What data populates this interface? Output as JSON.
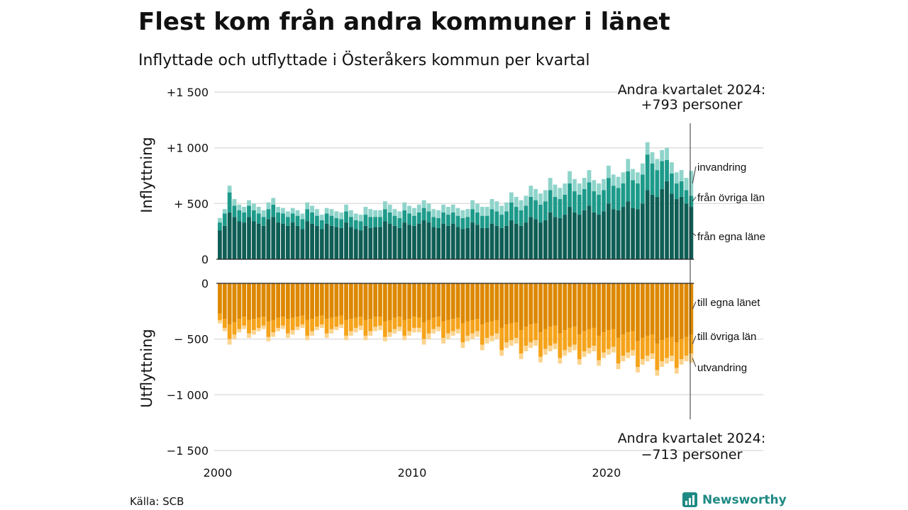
{
  "title": "Flest kom från andra kommuner i länet",
  "subtitle": "Inflyttade och utflyttade i Österåkers kommun per kvartal",
  "source": "Källa: SCB",
  "brand": "Newsworthy",
  "colors": {
    "in_own": "#0f5e55",
    "in_other": "#1d9a8a",
    "in_immig": "#8fd4cb",
    "out_own": "#dd8800",
    "out_other": "#f5a31a",
    "out_emig": "#fbd48f",
    "brand": "#1f8a84"
  },
  "chart_data": {
    "type": "bar",
    "stacked": true,
    "x_start": "2000 Q1",
    "x_end": "2024 Q2",
    "x_ticks": [
      "2000",
      "2010",
      "2020"
    ],
    "y_ticks": [
      "+1 500",
      "+1 000",
      "+ 500",
      "0",
      "0",
      "− 500",
      "−1 000",
      "−1 500"
    ],
    "in_axis_label": "Inflyttning",
    "out_axis_label": "Utflyttning",
    "ylim_in": [
      0,
      1500
    ],
    "ylim_out": [
      -1500,
      0
    ],
    "annotation_top": [
      "Andra kvartalet 2024:",
      "+793 personer"
    ],
    "annotation_bottom": [
      "Andra kvartalet 2024:",
      "−713 personer"
    ],
    "series_in": [
      {
        "name": "från egna länet",
        "label": "från egna läne",
        "values": [
          260,
          300,
          420,
          380,
          340,
          330,
          380,
          340,
          320,
          300,
          360,
          380,
          330,
          320,
          300,
          330,
          300,
          270,
          340,
          320,
          300,
          270,
          320,
          300,
          290,
          280,
          330,
          290,
          270,
          260,
          300,
          280,
          290,
          290,
          340,
          320,
          300,
          280,
          330,
          310,
          300,
          320,
          350,
          330,
          290,
          280,
          320,
          300,
          320,
          290,
          270,
          280,
          330,
          310,
          280,
          280,
          320,
          300,
          280,
          300,
          350,
          320,
          300,
          330,
          380,
          360,
          330,
          350,
          420,
          380,
          370,
          400,
          470,
          420,
          400,
          440,
          480,
          420,
          400,
          430,
          500,
          450,
          440,
          470,
          520,
          460,
          450,
          500,
          620,
          580,
          560,
          630,
          700,
          590,
          540,
          560,
          500,
          470
        ]
      },
      {
        "name": "från övriga län",
        "label": "från övriga län",
        "values": [
          70,
          110,
          180,
          100,
          100,
          90,
          100,
          100,
          90,
          80,
          90,
          110,
          90,
          90,
          80,
          80,
          90,
          90,
          110,
          100,
          90,
          80,
          90,
          90,
          80,
          80,
          100,
          90,
          80,
          80,
          100,
          100,
          90,
          90,
          110,
          100,
          90,
          90,
          110,
          100,
          90,
          100,
          110,
          100,
          90,
          90,
          100,
          100,
          100,
          100,
          100,
          100,
          120,
          110,
          110,
          110,
          130,
          130,
          120,
          130,
          160,
          150,
          140,
          150,
          180,
          170,
          160,
          170,
          200,
          180,
          170,
          180,
          210,
          190,
          180,
          190,
          210,
          190,
          180,
          190,
          230,
          210,
          200,
          210,
          270,
          250,
          230,
          260,
          320,
          280,
          240,
          250,
          190,
          180,
          140,
          140,
          120,
          100
        ]
      },
      {
        "name": "invandring",
        "label": "invandring",
        "values": [
          40,
          40,
          60,
          60,
          50,
          50,
          50,
          60,
          60,
          60,
          60,
          60,
          50,
          50,
          50,
          50,
          50,
          50,
          60,
          60,
          60,
          50,
          50,
          60,
          60,
          60,
          60,
          60,
          60,
          60,
          70,
          70,
          60,
          60,
          70,
          70,
          60,
          60,
          70,
          70,
          70,
          70,
          70,
          70,
          70,
          70,
          70,
          70,
          70,
          70,
          70,
          70,
          80,
          80,
          80,
          80,
          90,
          90,
          80,
          80,
          90,
          90,
          90,
          90,
          100,
          100,
          100,
          100,
          110,
          110,
          100,
          100,
          110,
          110,
          100,
          100,
          110,
          100,
          100,
          100,
          110,
          100,
          100,
          100,
          110,
          100,
          100,
          100,
          110,
          100,
          100,
          100,
          110,
          100,
          100,
          100,
          110,
          223
        ]
      }
    ],
    "series_out": [
      {
        "name": "till egna länet",
        "label": "till egna länet",
        "values": [
          -270,
          -320,
          -370,
          -350,
          -320,
          -300,
          -330,
          -320,
          -310,
          -300,
          -340,
          -330,
          -310,
          -300,
          -320,
          -310,
          -300,
          -290,
          -330,
          -320,
          -300,
          -290,
          -320,
          -310,
          -300,
          -290,
          -330,
          -320,
          -310,
          -300,
          -330,
          -320,
          -300,
          -300,
          -340,
          -330,
          -310,
          -300,
          -330,
          -320,
          -300,
          -310,
          -350,
          -330,
          -310,
          -300,
          -340,
          -330,
          -320,
          -310,
          -360,
          -340,
          -330,
          -320,
          -370,
          -350,
          -340,
          -330,
          -400,
          -370,
          -360,
          -350,
          -420,
          -390,
          -370,
          -360,
          -440,
          -410,
          -390,
          -380,
          -450,
          -420,
          -400,
          -390,
          -460,
          -430,
          -410,
          -400,
          -470,
          -440,
          -420,
          -410,
          -490,
          -460,
          -440,
          -430,
          -520,
          -490,
          -470,
          -460,
          -540,
          -510,
          -490,
          -480,
          -530,
          -500,
          -480,
          -460
        ]
      },
      {
        "name": "till övriga län",
        "label": "till övriga län",
        "values": [
          -60,
          -80,
          -130,
          -110,
          -90,
          -80,
          -120,
          -100,
          -90,
          -80,
          -140,
          -110,
          -90,
          -80,
          -130,
          -110,
          -90,
          -80,
          -140,
          -110,
          -90,
          -80,
          -130,
          -100,
          -90,
          -80,
          -140,
          -110,
          -90,
          -80,
          -140,
          -110,
          -90,
          -80,
          -140,
          -110,
          -100,
          -90,
          -140,
          -110,
          -100,
          -90,
          -150,
          -120,
          -100,
          -90,
          -150,
          -120,
          -110,
          -100,
          -170,
          -130,
          -120,
          -110,
          -180,
          -140,
          -130,
          -120,
          -200,
          -160,
          -150,
          -140,
          -210,
          -170,
          -160,
          -150,
          -220,
          -180,
          -170,
          -160,
          -220,
          -180,
          -170,
          -160,
          -220,
          -180,
          -170,
          -160,
          -220,
          -180,
          -170,
          -160,
          -230,
          -190,
          -180,
          -170,
          -230,
          -190,
          -180,
          -170,
          -240,
          -190,
          -180,
          -170,
          -230,
          -180,
          -170,
          -170
        ]
      },
      {
        "name": "utvandring",
        "label": "utvandring",
        "values": [
          -30,
          -30,
          -50,
          -40,
          -30,
          -30,
          -40,
          -40,
          -30,
          -30,
          -40,
          -40,
          -30,
          -30,
          -40,
          -40,
          -30,
          -30,
          -40,
          -40,
          -30,
          -30,
          -40,
          -40,
          -30,
          -30,
          -40,
          -40,
          -40,
          -40,
          -40,
          -40,
          -40,
          -40,
          -40,
          -40,
          -40,
          -40,
          -40,
          -40,
          -40,
          -40,
          -50,
          -50,
          -40,
          -40,
          -50,
          -50,
          -40,
          -40,
          -50,
          -50,
          -50,
          -50,
          -50,
          -50,
          -50,
          -50,
          -50,
          -50,
          -50,
          -50,
          -50,
          -50,
          -50,
          -50,
          -50,
          -50,
          -50,
          -50,
          -50,
          -50,
          -50,
          -50,
          -50,
          -50,
          -50,
          -50,
          -50,
          -50,
          -50,
          -50,
          -50,
          -50,
          -50,
          -50,
          -50,
          -50,
          -50,
          -50,
          -50,
          -50,
          -50,
          -50,
          -50,
          -50,
          -50,
          -83
        ]
      }
    ]
  }
}
